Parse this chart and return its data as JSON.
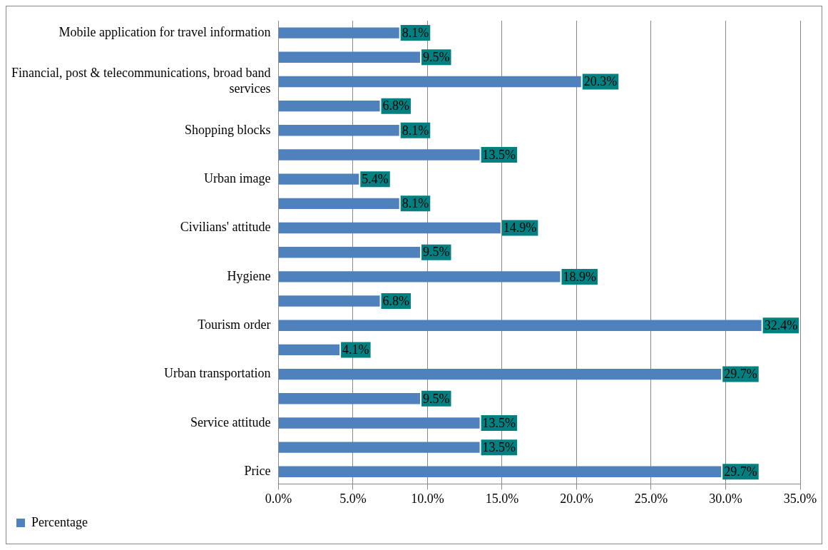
{
  "chart_data": {
    "type": "bar",
    "orientation": "horizontal",
    "categories": [
      "Mobile application for travel information",
      null,
      "Financial, post & telecommunications, broad band services",
      null,
      "Shopping blocks",
      null,
      "Urban image",
      null,
      "Civilians' attitude",
      null,
      "Hygiene",
      null,
      "Tourism order",
      null,
      "Urban transportation",
      null,
      "Service attitude",
      null,
      "Price"
    ],
    "series": [
      {
        "name": "Percentage",
        "color": "#4f81bd",
        "values": [
          8.1,
          9.5,
          20.3,
          6.8,
          8.1,
          13.5,
          5.4,
          8.1,
          14.9,
          9.5,
          18.9,
          6.8,
          32.4,
          4.1,
          29.7,
          9.5,
          13.5,
          13.5,
          29.7
        ],
        "value_labels": [
          "8.1%",
          "9.5%",
          "20.3%",
          "6.8%",
          "8.1%",
          "13.5%",
          "5.4%",
          "8.1%",
          "14.9%",
          "9.5%",
          "18.9%",
          "6.8%",
          "32.4%",
          "4.1%",
          "29.7%",
          "9.5%",
          "13.5%",
          "13.5%",
          "29.7%"
        ]
      }
    ],
    "xlim": [
      0,
      35
    ],
    "xticks": [
      {
        "value": 0,
        "label": "0.0%"
      },
      {
        "value": 5,
        "label": "5.0%"
      },
      {
        "value": 10,
        "label": "10.0%"
      },
      {
        "value": 15,
        "label": "15.0%"
      },
      {
        "value": 20,
        "label": "20.0%"
      },
      {
        "value": 25,
        "label": "25.0%"
      },
      {
        "value": 30,
        "label": "30.0%"
      },
      {
        "value": 35,
        "label": "35.0%"
      }
    ],
    "grid": "x",
    "legend": "bottom left"
  }
}
